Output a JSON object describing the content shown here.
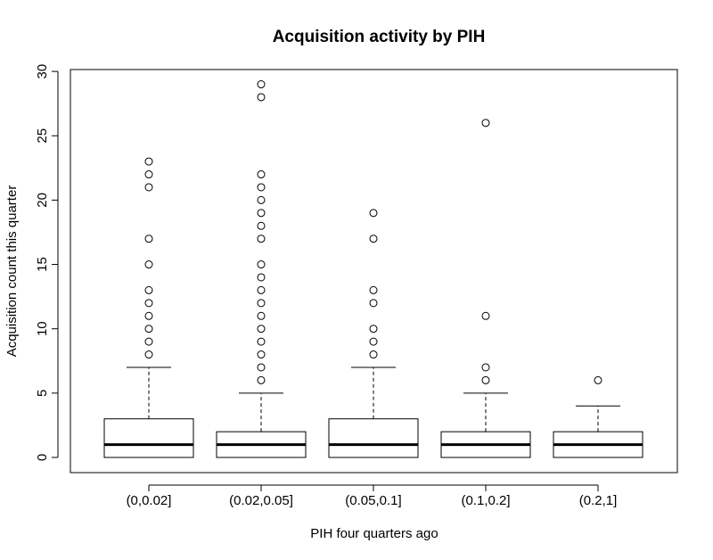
{
  "chart_data": {
    "type": "boxplot",
    "title": "Acquisition activity by PIH",
    "xlabel": "PIH four quarters ago",
    "ylabel": "Acquisition count this quarter",
    "ylim": [
      -1,
      30.5
    ],
    "yticks": [
      0,
      5,
      10,
      15,
      20,
      25,
      30
    ],
    "grid": false,
    "categories": [
      "(0,0.02]",
      "(0.02,0.05]",
      "(0.05,0.1]",
      "(0.1,0.2]",
      "(0.2,1]"
    ],
    "boxes": [
      {
        "category": "(0,0.02]",
        "whisker_low": 0,
        "q1": 0,
        "median": 1,
        "q3": 3,
        "whisker_high": 7,
        "outliers": [
          8,
          9,
          10,
          11,
          12,
          13,
          15,
          17,
          21,
          22,
          23
        ]
      },
      {
        "category": "(0.02,0.05]",
        "whisker_low": 0,
        "q1": 0,
        "median": 1,
        "q3": 2,
        "whisker_high": 5,
        "outliers": [
          6,
          7,
          8,
          9,
          10,
          11,
          12,
          13,
          14,
          15,
          17,
          18,
          19,
          20,
          21,
          22,
          28,
          29
        ]
      },
      {
        "category": "(0.05,0.1]",
        "whisker_low": 0,
        "q1": 0,
        "median": 1,
        "q3": 3,
        "whisker_high": 7,
        "outliers": [
          8,
          9,
          10,
          12,
          13,
          17,
          19
        ]
      },
      {
        "category": "(0.1,0.2]",
        "whisker_low": 0,
        "q1": 0,
        "median": 1,
        "q3": 2,
        "whisker_high": 5,
        "outliers": [
          6,
          7,
          11,
          26
        ]
      },
      {
        "category": "(0.2,1]",
        "whisker_low": 0,
        "q1": 0,
        "median": 1,
        "q3": 2,
        "whisker_high": 4,
        "outliers": [
          6
        ]
      }
    ],
    "colors": {
      "box_fill": "#ffffff",
      "stroke": "#000000",
      "median": "#000000"
    }
  }
}
